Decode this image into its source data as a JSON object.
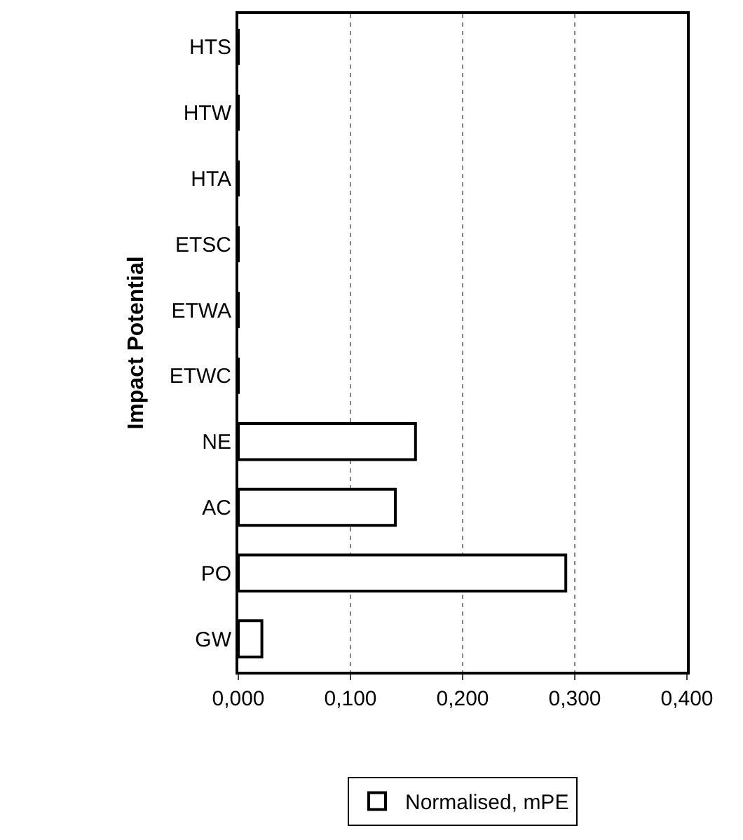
{
  "chart_data": {
    "type": "bar",
    "orientation": "horizontal",
    "ylabel": "Impact Potential",
    "categories": [
      "HTS",
      "HTW",
      "HTA",
      "ETSC",
      "ETWA",
      "ETWC",
      "NE",
      "AC",
      "PO",
      "GW"
    ],
    "series": [
      {
        "name": "Normalised, mPE",
        "color": "#ffffff",
        "values": [
          0,
          0,
          0,
          0,
          0,
          0,
          0.158,
          0.14,
          0.292,
          0.021
        ]
      }
    ],
    "xlim": [
      0,
      0.4
    ],
    "xticks": [
      {
        "value": 0,
        "label": "0,000"
      },
      {
        "value": 0.1,
        "label": "0,100"
      },
      {
        "value": 0.2,
        "label": "0,200"
      },
      {
        "value": 0.3,
        "label": "0,300"
      },
      {
        "value": 0.4,
        "label": "0,400"
      }
    ],
    "grid": "x",
    "legend": "bottom"
  }
}
